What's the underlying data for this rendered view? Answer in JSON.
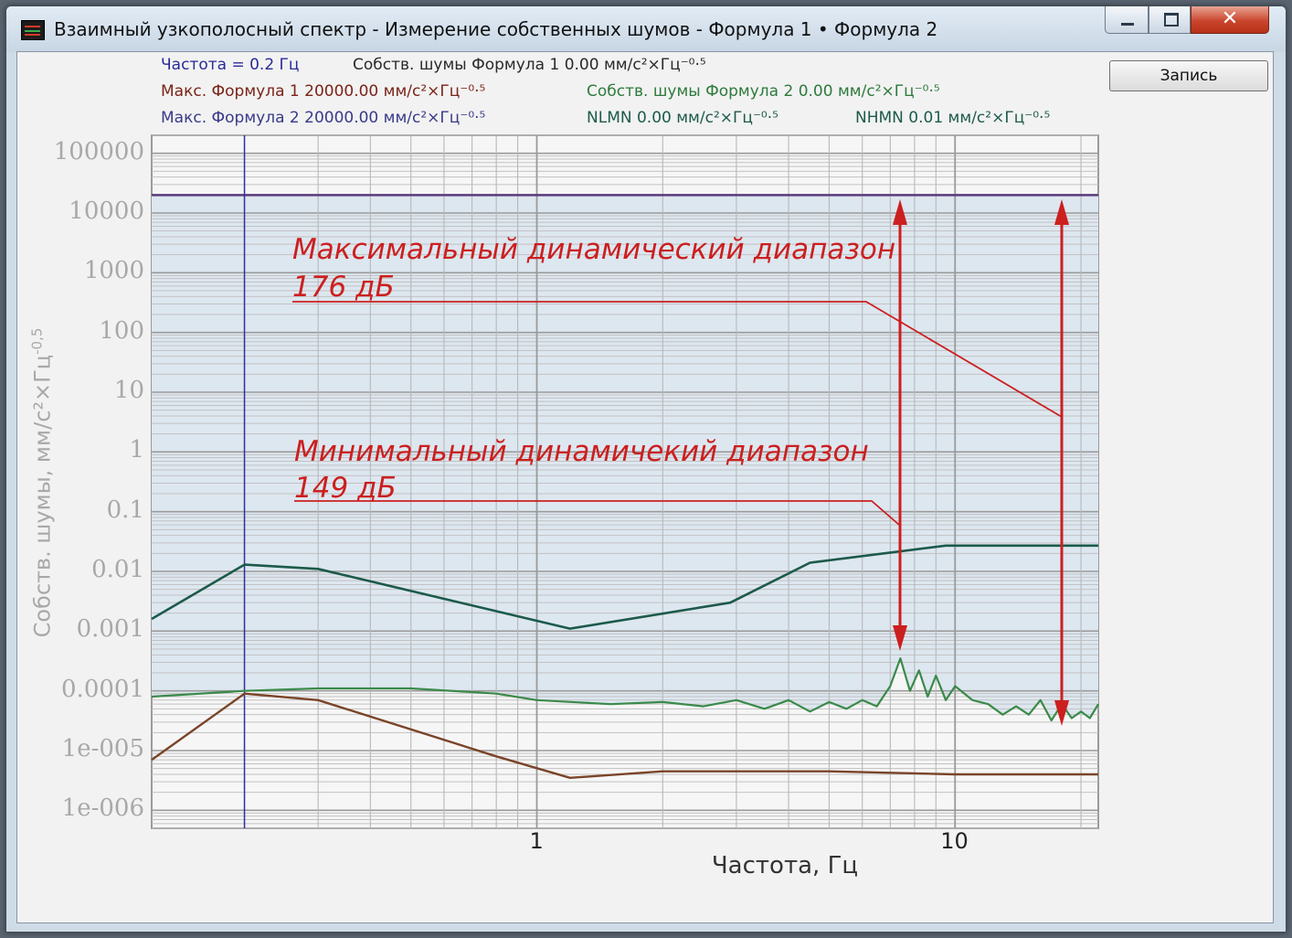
{
  "window": {
    "title": "Взаимный узкополосный спектр - Измерение собственных шумов - Формула 1 • Формула 2",
    "close_label": "✕"
  },
  "legend": {
    "frequency": "Частота = 0.2 Гц",
    "own_noise_f1": "Собств. шумы Формула 1 0.00 мм/с²×Гц⁻⁰·⁵",
    "max_f1": "Макс. Формула 1 20000.00 мм/с²×Гц⁻⁰·⁵",
    "own_noise_f2": "Собств. шумы Формула 2 0.00 мм/с²×Гц⁻⁰·⁵",
    "max_f2": "Макс. Формула 2 20000.00 мм/с²×Гц⁻⁰·⁵",
    "nlmn": "NLMN 0.00 мм/с²×Гц⁻⁰·⁵",
    "nhmn": "NHMN 0.01 мм/с²×Гц⁻⁰·⁵"
  },
  "toolbar": {
    "record_label": "Запись"
  },
  "annotations": {
    "max_range_line1": "Максимальный динамический диапазон",
    "max_range_line2": "176 дБ",
    "min_range_line1": "Минимальный динамичекий диапазон",
    "min_range_line2": "149 дБ"
  },
  "colors": {
    "frequency_text": "#2a2a9a",
    "own_noise_f1_text": "#2a2a2a",
    "max_f1_text": "#7a2418",
    "own_noise_f2_text": "#2e7a3c",
    "max_f2_text": "#3a3a8a",
    "nlmn_text": "#1c5a4a",
    "nhmn_text": "#1c5a4a",
    "annotation": "#cc1f1f",
    "max_line": "#5a3a7a",
    "nhmn_line": "#1c5a4a",
    "noise_line": "#3a8a4a",
    "nlmn_line": "#7a4428",
    "cursor": "#3030a0",
    "fill": "#dde7f0"
  },
  "chart_data": {
    "type": "line",
    "scale": "log-log",
    "xlabel": "Частота, Гц",
    "ylabel": "Собств. шумы, мм/с²×Гц",
    "ylabel_exponent": "-0,5",
    "xlim": [
      0.12,
      22
    ],
    "ylim": [
      5e-07,
      200000
    ],
    "y_ticks": [
      "100000",
      "10000",
      "1000",
      "100",
      "10",
      "1",
      "0.1",
      "0.01",
      "0.001",
      "0.0001",
      "1e-005",
      "1e-006"
    ],
    "x_ticks": [
      "1",
      "10"
    ],
    "cursor_x": 0.2,
    "series": [
      {
        "name": "Макс. Формула 1",
        "type": "hline",
        "y": 20000
      },
      {
        "name": "NHMN",
        "x": [
          0.12,
          0.2,
          0.3,
          1.2,
          2.9,
          4.5,
          9.5,
          22
        ],
        "y": [
          0.0016,
          0.013,
          0.011,
          0.0011,
          0.003,
          0.014,
          0.027,
          0.027
        ]
      },
      {
        "name": "Собств. шумы Формула 2",
        "x": [
          0.12,
          0.2,
          0.3,
          0.5,
          0.8,
          1.0,
          1.5,
          2.0,
          2.5,
          3.0,
          3.5,
          4.0,
          4.5,
          5.0,
          5.5,
          6.0,
          6.5,
          7.0,
          7.4,
          7.8,
          8.2,
          8.6,
          9.0,
          9.5,
          10,
          11,
          12,
          13,
          14,
          15,
          16,
          17,
          18,
          19,
          20,
          21,
          22
        ],
        "y": [
          8e-05,
          0.0001,
          0.00011,
          0.00011,
          9e-05,
          7e-05,
          6e-05,
          6.5e-05,
          5.5e-05,
          7e-05,
          5e-05,
          7e-05,
          4.5e-05,
          6.5e-05,
          5e-05,
          7e-05,
          5.5e-05,
          0.00012,
          0.00035,
          0.0001,
          0.00022,
          8e-05,
          0.00018,
          7e-05,
          0.00012,
          7e-05,
          6e-05,
          4e-05,
          5.5e-05,
          4e-05,
          7e-05,
          3.2e-05,
          6e-05,
          3.5e-05,
          4.5e-05,
          3.5e-05,
          6e-05
        ]
      },
      {
        "name": "NLMN",
        "x": [
          0.12,
          0.2,
          0.3,
          0.8,
          1.2,
          2.0,
          5.0,
          10,
          22
        ],
        "y": [
          7e-06,
          9e-05,
          7e-05,
          8e-06,
          3.5e-06,
          4.5e-06,
          4.5e-06,
          4e-06,
          4e-06
        ]
      }
    ]
  }
}
